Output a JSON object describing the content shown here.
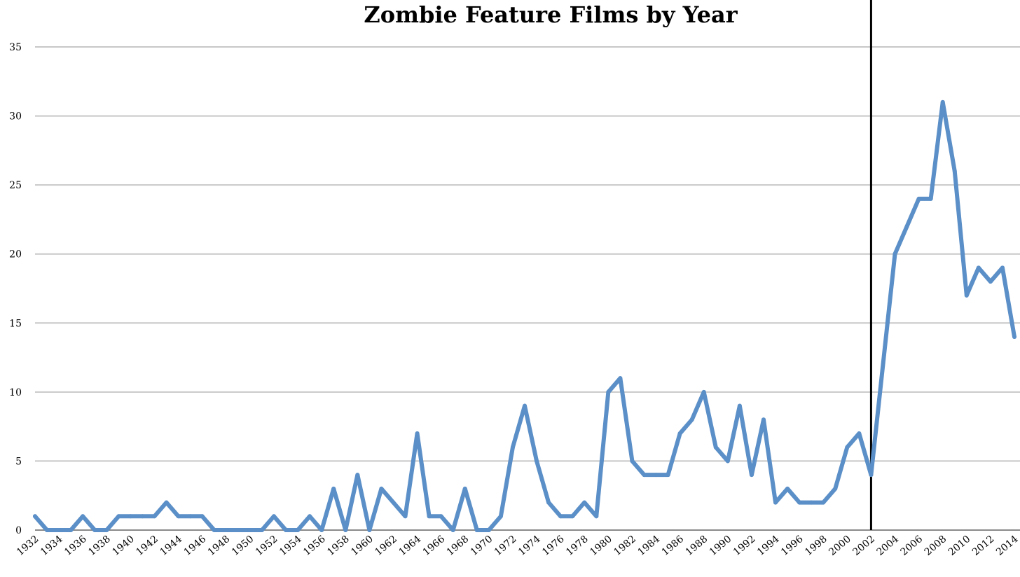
{
  "chart_data": {
    "type": "line",
    "title": "Zombie Feature Films by Year",
    "xlabel": "",
    "ylabel": "",
    "ylim": [
      0,
      35
    ],
    "yticks": [
      0,
      5,
      10,
      15,
      20,
      25,
      30,
      35
    ],
    "xlim": [
      1932,
      2014
    ],
    "xtick_labels": [
      "1932",
      "1934",
      "1936",
      "1938",
      "1940",
      "1942",
      "1944",
      "1946",
      "1948",
      "1950",
      "1952",
      "1954",
      "1956",
      "1958",
      "1960",
      "1962",
      "1964",
      "1966",
      "1968",
      "1970",
      "1972",
      "1974",
      "1976",
      "1978",
      "1980",
      "1982",
      "1984",
      "1986",
      "1988",
      "1990",
      "1992",
      "1994",
      "1996",
      "1998",
      "2000",
      "2002",
      "2004",
      "2006",
      "2008",
      "2010",
      "2012",
      "2014"
    ],
    "grid": true,
    "legend": "none",
    "colors": {
      "series": "#5b8fc7",
      "marker": "#000000",
      "grid": "#c8c8c8"
    },
    "vertical_marker": {
      "x": 2002
    },
    "x": [
      1932,
      1933,
      1934,
      1935,
      1936,
      1937,
      1938,
      1939,
      1940,
      1941,
      1942,
      1943,
      1944,
      1945,
      1946,
      1947,
      1948,
      1949,
      1950,
      1951,
      1952,
      1953,
      1954,
      1955,
      1956,
      1957,
      1958,
      1959,
      1960,
      1961,
      1962,
      1963,
      1964,
      1965,
      1966,
      1967,
      1968,
      1969,
      1970,
      1971,
      1972,
      1973,
      1974,
      1975,
      1976,
      1977,
      1978,
      1979,
      1980,
      1981,
      1982,
      1983,
      1984,
      1985,
      1986,
      1987,
      1988,
      1989,
      1990,
      1991,
      1992,
      1993,
      1994,
      1995,
      1996,
      1997,
      1998,
      1999,
      2000,
      2001,
      2002,
      2003,
      2004,
      2005,
      2006,
      2007,
      2008,
      2009,
      2010,
      2011,
      2012,
      2013,
      2014
    ],
    "series": [
      {
        "values": [
          1,
          0,
          0,
          0,
          1,
          0,
          0,
          1,
          1,
          1,
          1,
          2,
          1,
          1,
          1,
          0,
          0,
          0,
          0,
          0,
          1,
          0,
          0,
          1,
          0,
          3,
          0,
          4,
          0,
          3,
          2,
          1,
          7,
          1,
          1,
          0,
          3,
          0,
          0,
          1,
          6,
          9,
          5,
          2,
          1,
          1,
          2,
          1,
          10,
          11,
          5,
          4,
          4,
          4,
          7,
          8,
          10,
          6,
          5,
          9,
          4,
          8,
          2,
          3,
          2,
          2,
          2,
          3,
          6,
          7,
          4,
          12,
          20,
          22,
          24,
          24,
          31,
          26,
          17,
          19,
          18,
          19,
          14
        ]
      }
    ]
  }
}
